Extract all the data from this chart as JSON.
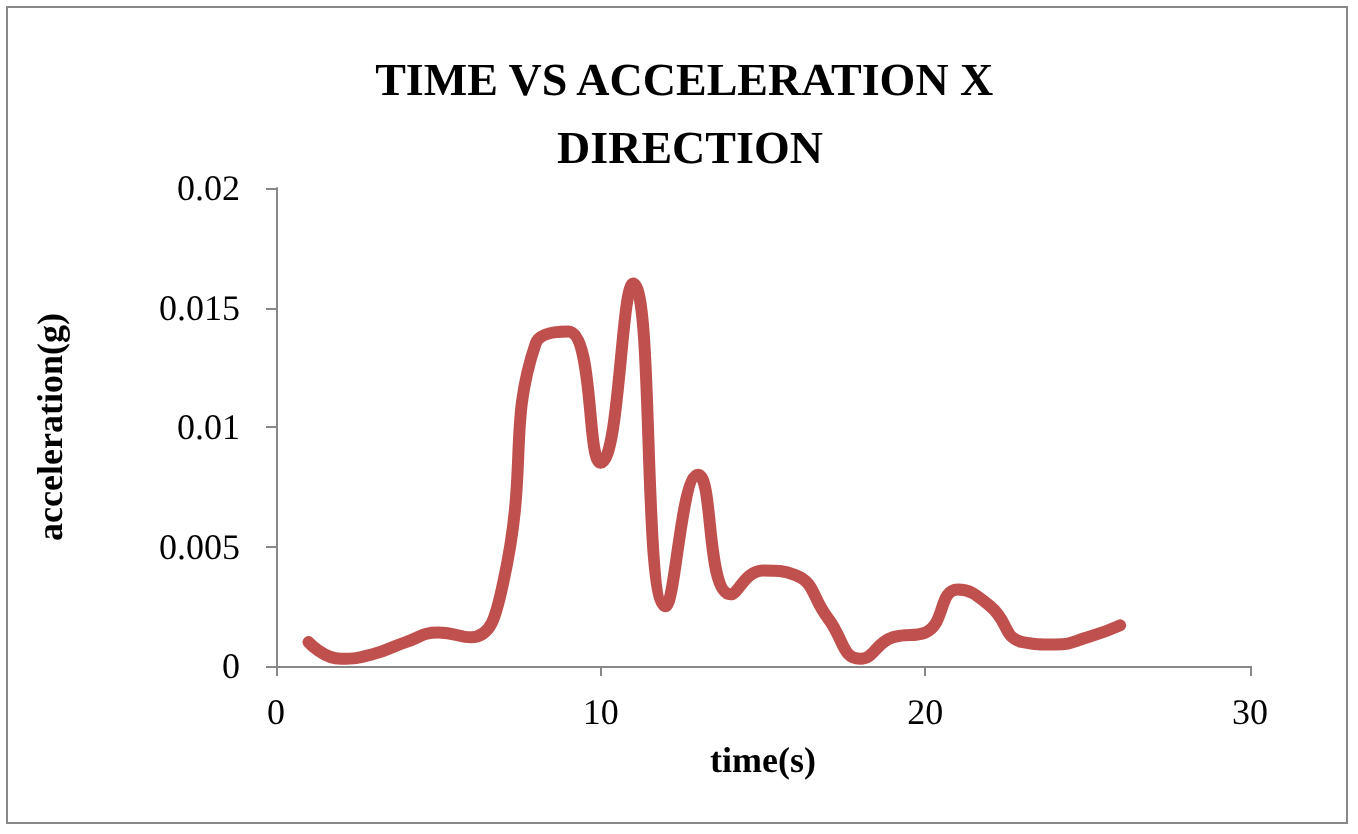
{
  "chart_data": {
    "type": "line",
    "title": "TIME VS ACCELERATION X DIRECTION",
    "xlabel": "time(s)",
    "ylabel": "acceleration(g)",
    "x": [
      1,
      2,
      3,
      4,
      5,
      6,
      7,
      8,
      9,
      10,
      11,
      12,
      13,
      14,
      15,
      16,
      17,
      18,
      19,
      20,
      21,
      22,
      23,
      24,
      25,
      26
    ],
    "series": [
      {
        "color": "#c0504d",
        "values": [
          0.001,
          0.0003,
          0.0005,
          0.001,
          0.0014,
          0.0012,
          0.0035,
          0.0135,
          0.014,
          0.0085,
          0.016,
          0.0025,
          0.008,
          0.003,
          0.004,
          0.0038,
          0.002,
          0.0003,
          0.0012,
          0.0014,
          0.0032,
          0.0025,
          0.001,
          0.0009,
          0.0012,
          0.0017
        ]
      }
    ],
    "xlim": [
      0,
      30
    ],
    "xticks": [
      0,
      10,
      20,
      30
    ],
    "ylim": [
      0,
      0.02
    ],
    "yticks": [
      0,
      0.005,
      0.01,
      0.015,
      0.02
    ],
    "grid": false,
    "marker": "none",
    "line_style": "solid"
  }
}
